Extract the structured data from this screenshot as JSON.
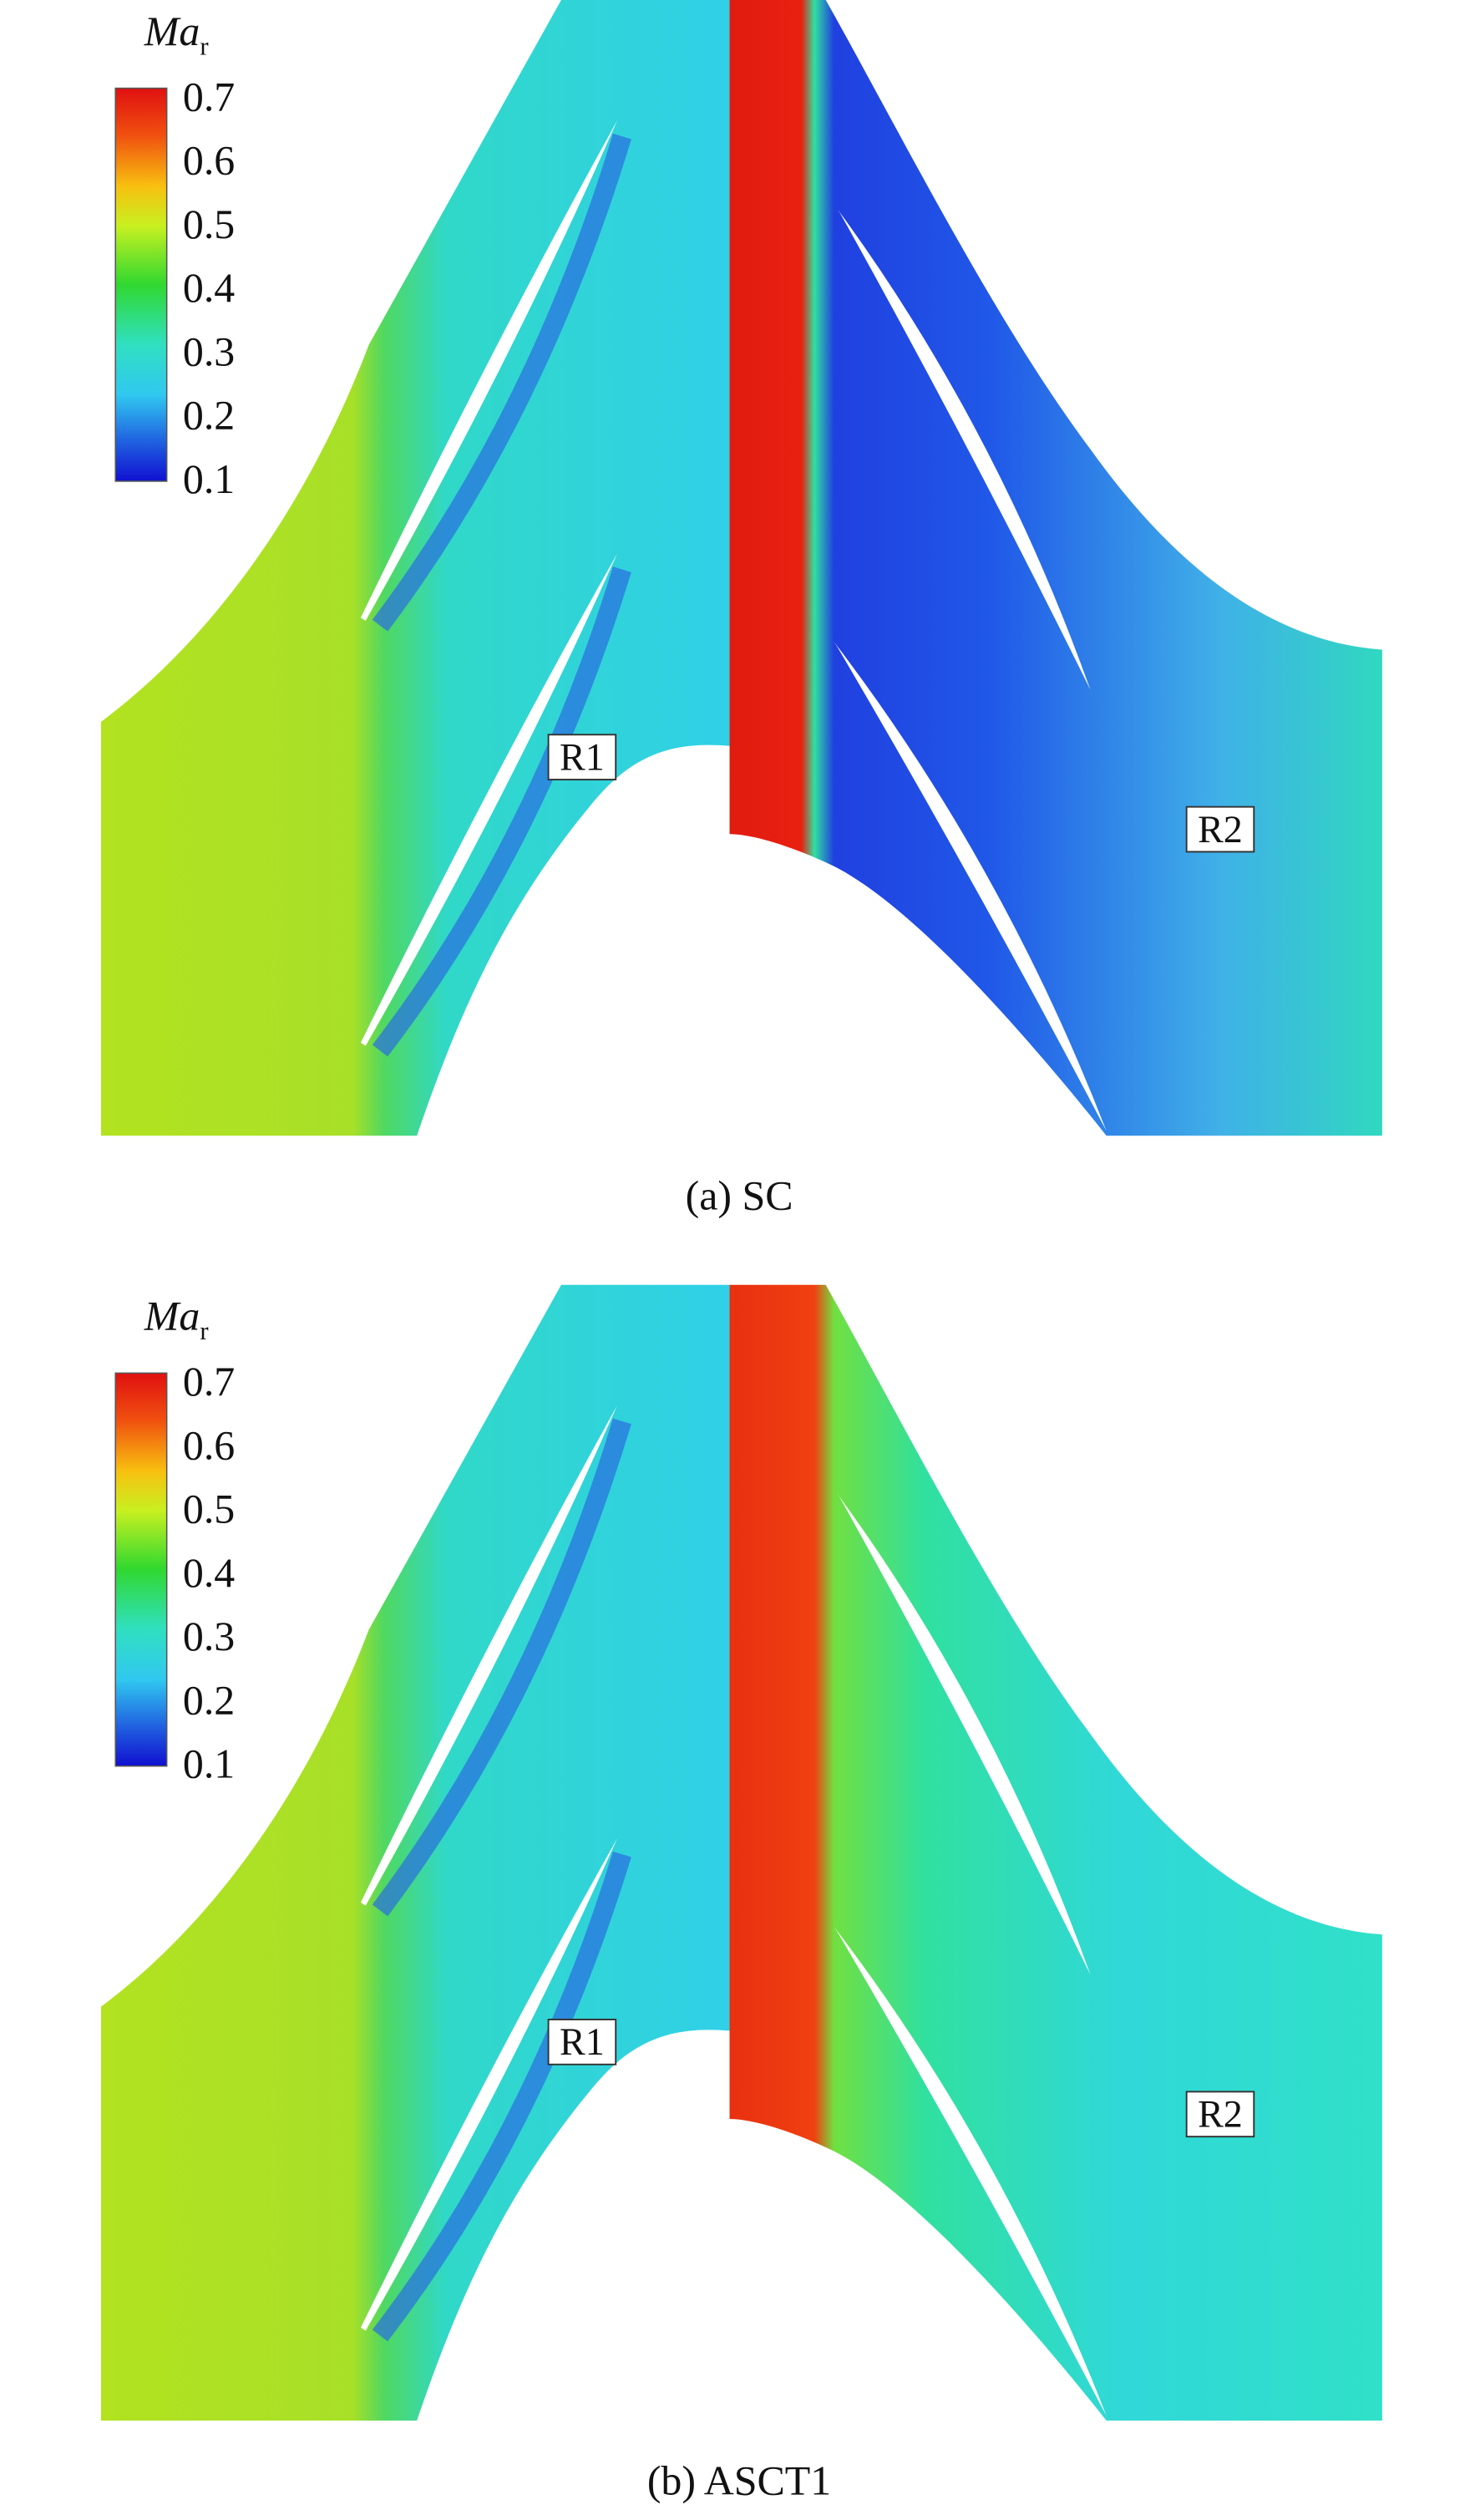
{
  "panels": [
    {
      "legend": {
        "title": "Ma",
        "subscript": "r",
        "ticks": [
          0.7,
          0.6,
          0.5,
          0.4,
          0.3,
          0.2,
          0.1
        ]
      },
      "labels": [
        "R1",
        "R2"
      ],
      "caption": "(a) SC"
    },
    {
      "legend": {
        "title": "Ma",
        "subscript": "r",
        "ticks": [
          0.7,
          0.6,
          0.5,
          0.4,
          0.3,
          0.2,
          0.1
        ]
      },
      "labels": [
        "R1",
        "R2"
      ],
      "caption": "(b) ASCT1"
    }
  ]
}
